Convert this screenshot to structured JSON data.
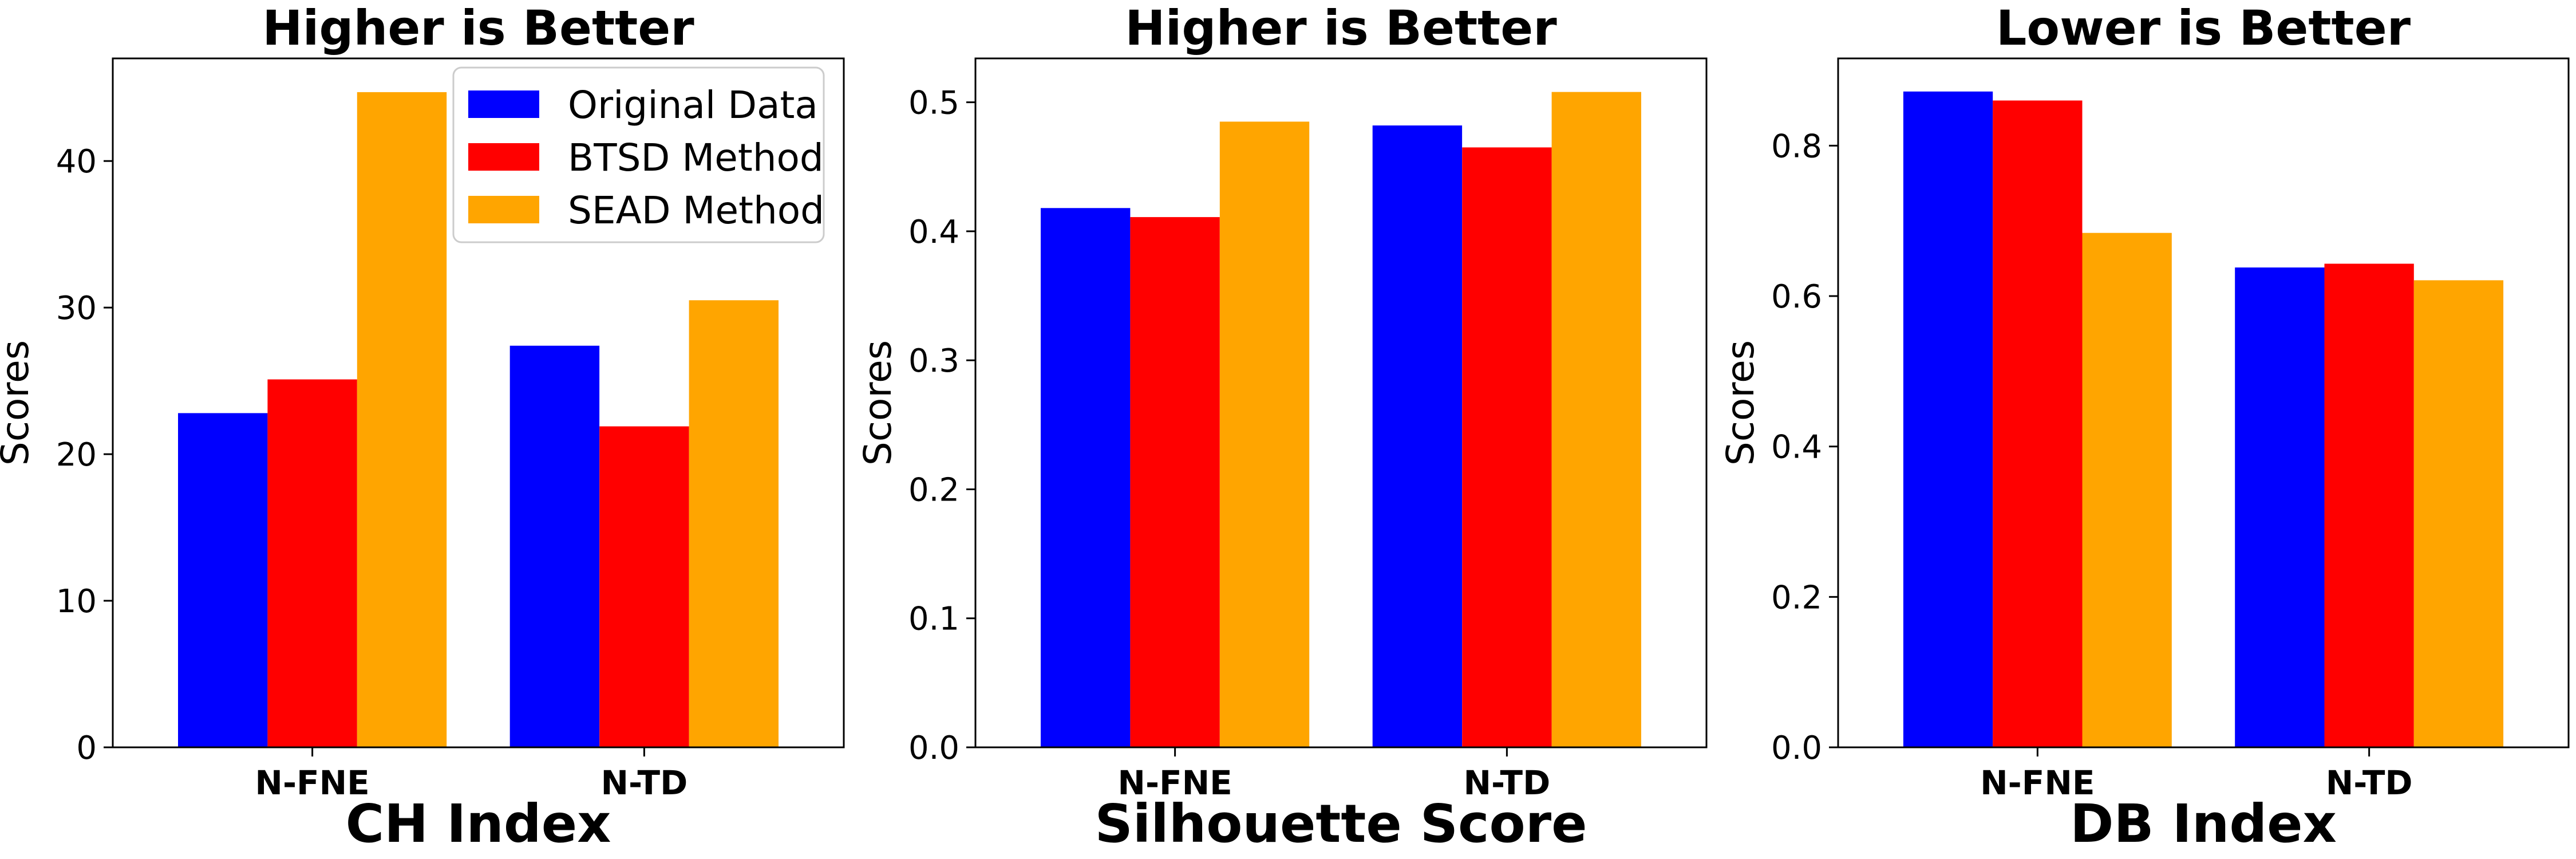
{
  "legend_entries": [
    {
      "label": "Original Data",
      "color": "#0000ff"
    },
    {
      "label": "BTSD Method",
      "color": "#ff0000"
    },
    {
      "label": "SEAD Method",
      "color": "#ffa500"
    }
  ],
  "chart_data": [
    {
      "type": "bar",
      "title": "Higher is Better",
      "xlabel": "CH Index",
      "ylabel": "Scores",
      "categories": [
        "N-FNE",
        "N-TD"
      ],
      "ylim": [
        0,
        47
      ],
      "yticks": [
        0,
        10,
        20,
        30,
        40
      ],
      "ytick_labels": [
        "0",
        "10",
        "20",
        "30",
        "40"
      ],
      "grid": false,
      "legend_placement": "top-right",
      "series": [
        {
          "name": "Original Data",
          "color": "#0000ff",
          "values": [
            22.8,
            27.4
          ]
        },
        {
          "name": "BTSD Method",
          "color": "#ff0000",
          "values": [
            25.1,
            21.9
          ]
        },
        {
          "name": "SEAD Method",
          "color": "#ffa500",
          "values": [
            44.7,
            30.5
          ]
        }
      ]
    },
    {
      "type": "bar",
      "title": "Higher is Better",
      "xlabel": "Silhouette Score",
      "ylabel": "Scores",
      "categories": [
        "N-FNE",
        "N-TD"
      ],
      "ylim": [
        0,
        0.534
      ],
      "yticks": [
        0.0,
        0.1,
        0.2,
        0.3,
        0.4,
        0.5
      ],
      "ytick_labels": [
        "0.0",
        "0.1",
        "0.2",
        "0.3",
        "0.4",
        "0.5"
      ],
      "grid": false,
      "series": [
        {
          "name": "Original Data",
          "color": "#0000ff",
          "values": [
            0.418,
            0.482
          ]
        },
        {
          "name": "BTSD Method",
          "color": "#ff0000",
          "values": [
            0.411,
            0.465
          ]
        },
        {
          "name": "SEAD Method",
          "color": "#ffa500",
          "values": [
            0.485,
            0.508
          ]
        }
      ]
    },
    {
      "type": "bar",
      "title": "Lower is Better",
      "xlabel": "DB Index",
      "ylabel": "Scores",
      "categories": [
        "N-FNE",
        "N-TD"
      ],
      "ylim": [
        0,
        0.916
      ],
      "yticks": [
        0.0,
        0.2,
        0.4,
        0.6,
        0.8
      ],
      "ytick_labels": [
        "0.0",
        "0.2",
        "0.4",
        "0.6",
        "0.8"
      ],
      "grid": false,
      "series": [
        {
          "name": "Original Data",
          "color": "#0000ff",
          "values": [
            0.872,
            0.638
          ]
        },
        {
          "name": "BTSD Method",
          "color": "#ff0000",
          "values": [
            0.86,
            0.643
          ]
        },
        {
          "name": "SEAD Method",
          "color": "#ffa500",
          "values": [
            0.684,
            0.621
          ]
        }
      ]
    }
  ]
}
